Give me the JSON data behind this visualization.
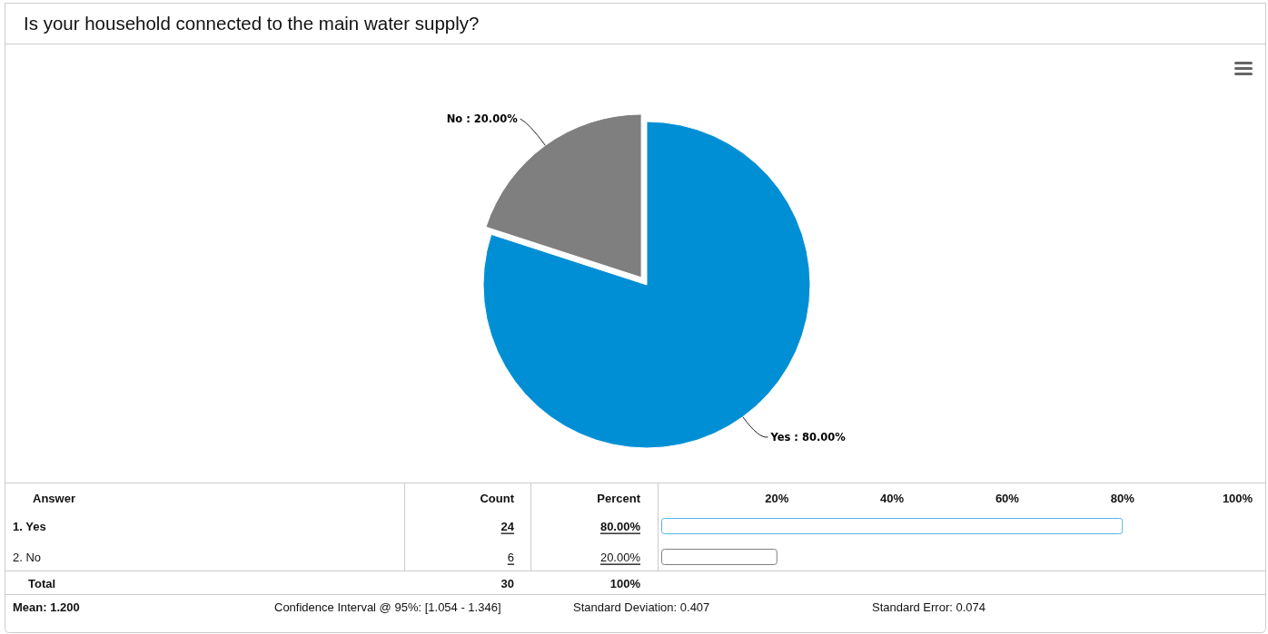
{
  "chart_data": [
    {
      "type": "pie",
      "title": "Is your household connected to the main water supply?",
      "categories": [
        "Yes",
        "No"
      ],
      "values": [
        80,
        20
      ],
      "colors": [
        "#008fd5",
        "#7f7f7f"
      ],
      "value_labels": [
        "80.00%",
        "20.00%"
      ]
    },
    {
      "type": "bar",
      "orientation": "horizontal",
      "categories": [
        "1. Yes",
        "2. No"
      ],
      "values": [
        80,
        20
      ],
      "colors": [
        "#55b4e6",
        "#7f7f7f"
      ],
      "x2lim": [
        0,
        100
      ],
      "x2ticks": [
        {
          "value": 20,
          "label": "20%"
        },
        {
          "value": 40,
          "label": "40%"
        },
        {
          "value": 60,
          "label": "60%"
        },
        {
          "value": 80,
          "label": "80%"
        },
        {
          "value": 100,
          "label": "100%"
        }
      ],
      "value_labels": [
        "80.00%",
        "20.00%"
      ],
      "annotations": [
        "Answer",
        "Count",
        "Percent",
        "24",
        "6",
        "Total",
        "30",
        "100%",
        "Mean: 1.200",
        "Confidence Interval @ 95%: [1.054 - 1.346]",
        "Standard Deviation: 0.407",
        "Standard Error: 0.074"
      ]
    }
  ]
}
